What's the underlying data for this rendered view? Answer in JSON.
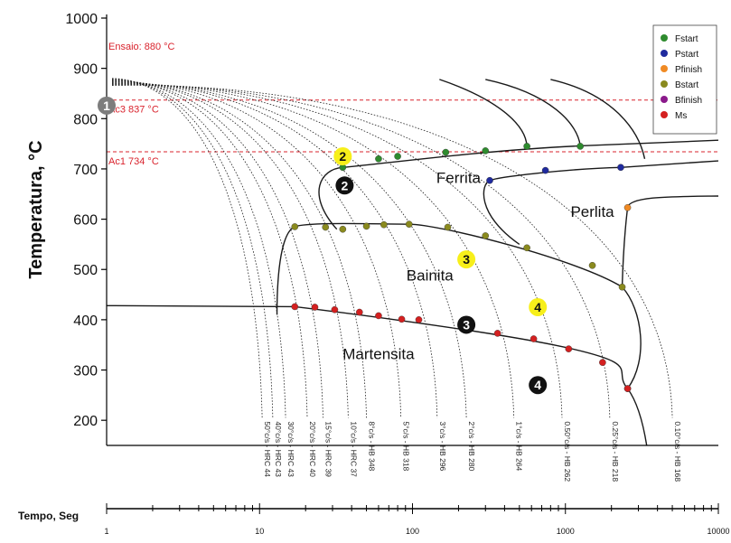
{
  "chart_data": {
    "type": "line",
    "ylabel": "Temperatura, °C",
    "xlabel": "Tempo, Seg",
    "x_scale": "log",
    "xlim": [
      1,
      10000
    ],
    "ylim": [
      150,
      1000
    ],
    "yticks": [
      200,
      300,
      400,
      500,
      600,
      700,
      800,
      900,
      1000
    ],
    "xticks": [
      "1",
      "10",
      "100",
      "1000",
      "10000"
    ],
    "grid": false,
    "colors": {
      "axis": "#000000",
      "ref_line": "#d9232d",
      "Fstart": "#2e8b2e",
      "Pstart": "#1f2a9e",
      "Pfinish": "#f08a24",
      "Bstart": "#8a8a1e",
      "Bfinish": "#8b1a8b",
      "Ms": "#d42020",
      "badge_yellow": "#f7ef1a",
      "badge_black": "#111111",
      "badge_grey": "#7d7d7d"
    },
    "reference_lines": [
      {
        "label": "Ensaio: 880 °C",
        "y": 880
      },
      {
        "label": "Ac3 837 °C",
        "y": 837
      },
      {
        "label": "Ac1 734 °C",
        "y": 734
      }
    ],
    "legend": {
      "position": "top-right",
      "items": [
        {
          "name": "Fstart",
          "color": "#2e8b2e"
        },
        {
          "name": "Pstart",
          "color": "#1f2a9e"
        },
        {
          "name": "Pfinish",
          "color": "#f08a24"
        },
        {
          "name": "Bstart",
          "color": "#8a8a1e"
        },
        {
          "name": "Bfinish",
          "color": "#8b1a8b"
        },
        {
          "name": "Ms",
          "color": "#d42020"
        }
      ]
    },
    "regions": [
      {
        "label": "Ferrita",
        "x": 200,
        "y": 672
      },
      {
        "label": "Perlita",
        "x": 1500,
        "y": 605
      },
      {
        "label": "Bainita",
        "x": 130,
        "y": 478
      },
      {
        "label": "Martensita",
        "x": 60,
        "y": 322
      }
    ],
    "cooling_labels": [
      {
        "label": "50°c/s - HRC 44",
        "x": 10.4
      },
      {
        "label": "40°c/s - HRC 43",
        "x": 12.2
      },
      {
        "label": "30°c/s - HRC 43",
        "x": 14.8
      },
      {
        "label": "20°c/s - HRC 40",
        "x": 20.5
      },
      {
        "label": "15°c/s - HRC 39",
        "x": 26
      },
      {
        "label": "10°c/s - HRC 37",
        "x": 38
      },
      {
        "label": "8°c/s - HB 348",
        "x": 50
      },
      {
        "label": "5°c/s - HB 318",
        "x": 84
      },
      {
        "label": "3°c/s - HB 296",
        "x": 145
      },
      {
        "label": "2°c/s - HB 280",
        "x": 225
      },
      {
        "label": "1°c/s - HB 264",
        "x": 460
      },
      {
        "label": "0.50°c/s - HB 262",
        "x": 950
      },
      {
        "label": "0.25°c/s - HB 218",
        "x": 1950
      },
      {
        "label": "0.10°c/s - HB 168",
        "x": 5000
      }
    ],
    "cooling_end_y": 205,
    "cooling_start_y": 880,
    "series": [
      {
        "name": "Fstart",
        "points": [
          [
            35,
            703
          ],
          [
            60,
            720
          ],
          [
            80,
            725
          ],
          [
            165,
            733
          ],
          [
            300,
            736
          ],
          [
            560,
            745
          ],
          [
            1250,
            745
          ]
        ]
      },
      {
        "name": "Pstart",
        "points": [
          [
            320,
            677
          ],
          [
            740,
            697
          ],
          [
            2300,
            703
          ]
        ]
      },
      {
        "name": "Pfinish",
        "points": [
          [
            2550,
            623
          ]
        ]
      },
      {
        "name": "Bstart",
        "points": [
          [
            17,
            585
          ],
          [
            27,
            584
          ],
          [
            35,
            580
          ],
          [
            50,
            586
          ],
          [
            65,
            589
          ],
          [
            95,
            590
          ],
          [
            170,
            584
          ],
          [
            300,
            567
          ],
          [
            560,
            543
          ],
          [
            1500,
            508
          ],
          [
            2350,
            465
          ]
        ]
      },
      {
        "name": "Bfinish",
        "points": [
          [
            2550,
            263
          ]
        ]
      },
      {
        "name": "Ms",
        "points": [
          [
            17,
            426
          ],
          [
            23,
            425
          ],
          [
            31,
            420
          ],
          [
            45,
            415
          ],
          [
            60,
            408
          ],
          [
            85,
            401
          ],
          [
            110,
            400
          ],
          [
            215,
            386
          ],
          [
            360,
            373
          ],
          [
            620,
            362
          ],
          [
            1050,
            342
          ],
          [
            1750,
            315
          ],
          [
            2550,
            263
          ]
        ]
      }
    ],
    "badges": [
      {
        "text": "1",
        "x": 1.0,
        "y": 826,
        "style": "grey"
      },
      {
        "text": "2",
        "x": 35,
        "y": 725,
        "style": "yellow"
      },
      {
        "text": "2",
        "x": 36,
        "y": 667,
        "style": "black"
      },
      {
        "text": "3",
        "x": 225,
        "y": 520,
        "style": "yellow"
      },
      {
        "text": "3",
        "x": 225,
        "y": 390,
        "style": "black"
      },
      {
        "text": "4",
        "x": 660,
        "y": 425,
        "style": "yellow"
      },
      {
        "text": "4",
        "x": 660,
        "y": 270,
        "style": "black"
      }
    ]
  }
}
